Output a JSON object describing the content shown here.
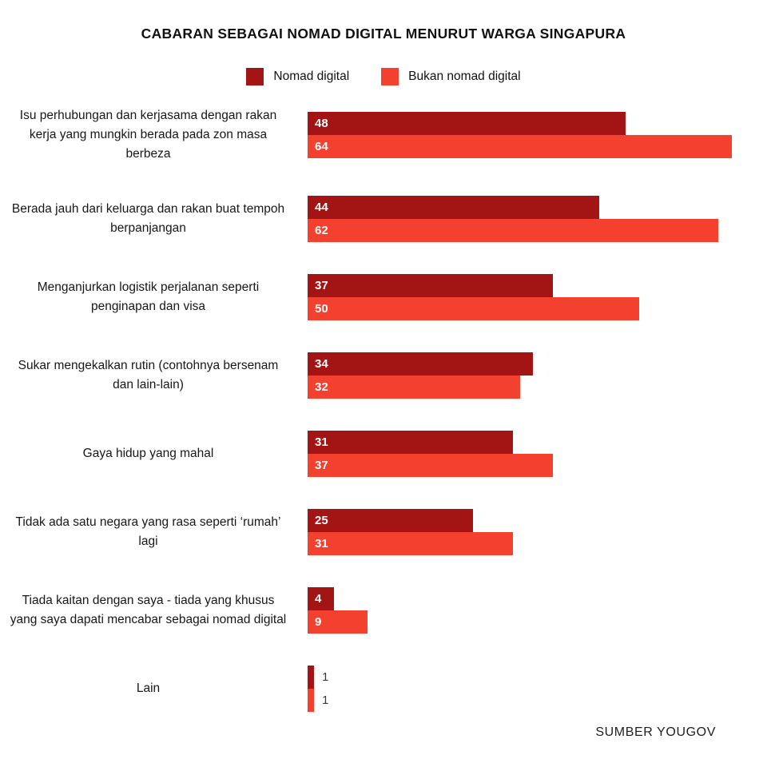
{
  "title": "CABARAN SEBAGAI NOMAD DIGITAL MENURUT WARGA SINGAPURA",
  "source": "SUMBER YOUGOV",
  "colors": {
    "nomad_digital": "#A31414",
    "bukan_nomad_digital": "#F4402F"
  },
  "chart_data": {
    "type": "bar",
    "orientation": "horizontal",
    "title": "CABARAN SEBAGAI NOMAD DIGITAL MENURUT WARGA SINGAPURA",
    "xlim": [
      0,
      64
    ],
    "grid": false,
    "legend_position": "top",
    "value_labels": "inside-left, white; outside when bar too small",
    "categories": [
      "Isu perhubungan dan kerjasama dengan rakan kerja yang mungkin berada pada zon masa berbeza",
      "Berada jauh dari keluarga dan rakan buat tempoh berpanjangan",
      "Menganjurkan logistik perjalanan seperti penginapan dan visa",
      "Sukar mengekalkan rutin (contohnya bersenam dan lain-lain)",
      "Gaya hidup yang mahal",
      "Tidak ada satu negara yang rasa seperti ‘rumah’ lagi",
      "Tiada kaitan dengan saya - tiada yang khusus yang saya dapati mencabar sebagai nomad digital",
      "Lain"
    ],
    "series": [
      {
        "name": "Nomad digital",
        "color": "#A31414",
        "values": [
          48,
          44,
          37,
          34,
          31,
          25,
          4,
          1
        ]
      },
      {
        "name": "Bukan nomad digital",
        "color": "#F4402F",
        "values": [
          64,
          62,
          50,
          32,
          37,
          31,
          9,
          1
        ]
      }
    ],
    "source": "SUMBER YOUGOV"
  }
}
